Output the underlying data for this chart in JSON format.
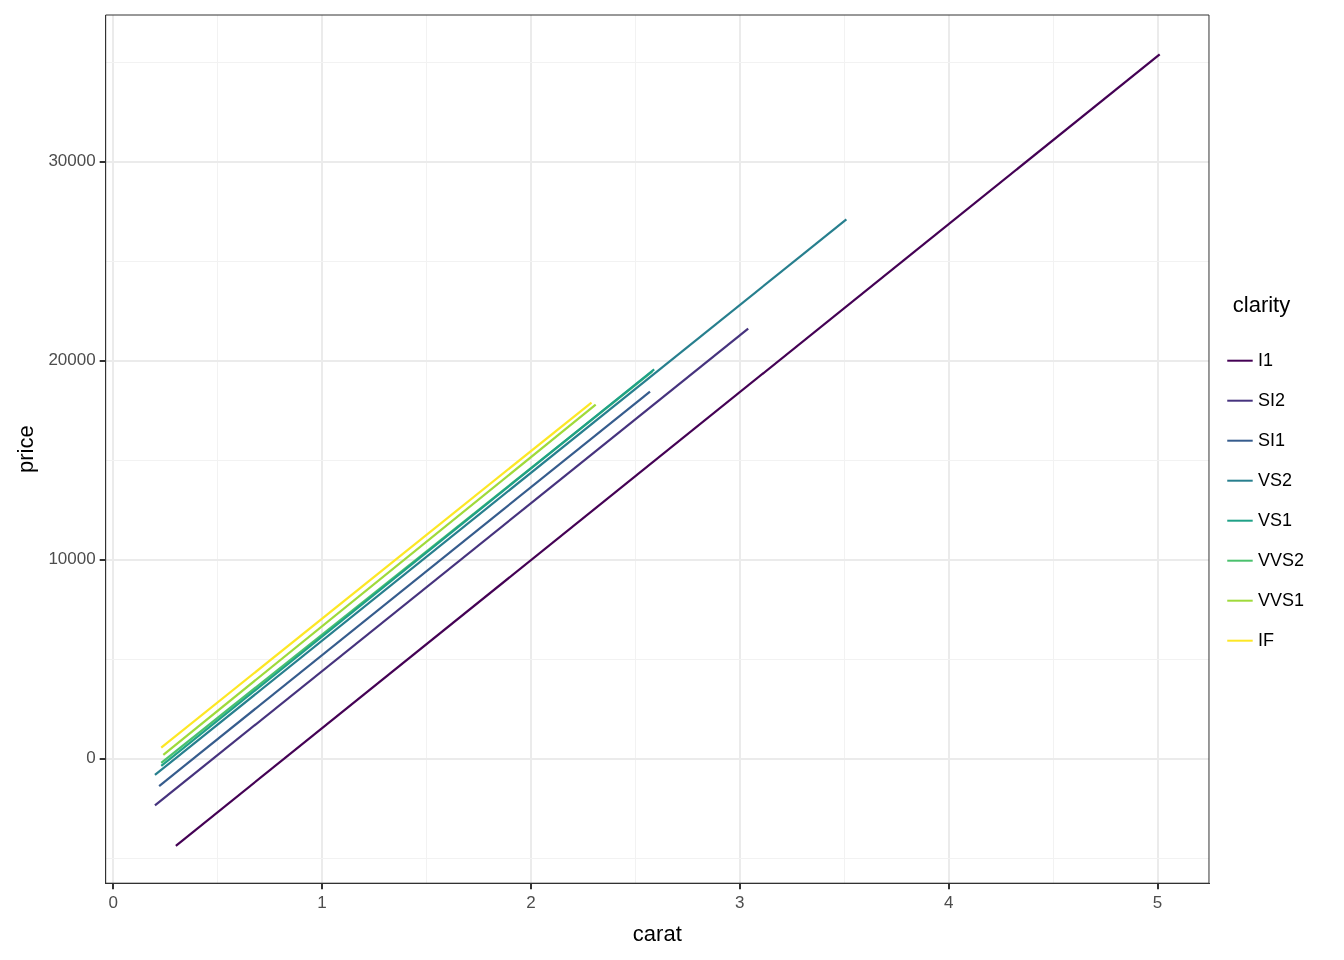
{
  "chart_data": {
    "type": "line",
    "xlabel": "carat",
    "ylabel": "price",
    "legend_title": "clarity",
    "xlim": [
      -0.036,
      5.246
    ],
    "ylim": [
      -6250,
      37370
    ],
    "xticks": [
      0,
      {
        "value": 0.5,
        "label": null
      },
      1,
      {
        "value": 1.5,
        "label": null
      },
      2,
      {
        "value": 2.5,
        "label": null
      },
      3,
      {
        "value": 3.5,
        "label": null
      },
      4,
      {
        "value": 4.5,
        "label": null
      },
      5
    ],
    "yticks": [
      {
        "value": -5000,
        "label": null
      },
      0,
      {
        "value": 5000,
        "label": null
      },
      10000,
      {
        "value": 15000,
        "label": null
      },
      20000,
      {
        "value": 25000,
        "label": null
      },
      30000,
      {
        "value": 35000,
        "label": null
      }
    ],
    "grid": true,
    "legend": "right",
    "marker": "none",
    "line_style": "solid",
    "series": [
      {
        "name": "I1",
        "color": "#440154",
        "x": [
          0.3,
          5.01
        ],
        "values": [
          -4370,
          35390
        ]
      },
      {
        "name": "SI2",
        "color": "#46337e",
        "x": [
          0.2,
          3.04
        ],
        "values": [
          -2340,
          21610
        ]
      },
      {
        "name": "SI1",
        "color": "#365c8d",
        "x": [
          0.22,
          2.57
        ],
        "values": [
          -1370,
          18450
        ]
      },
      {
        "name": "VS2",
        "color": "#277f8e",
        "x": [
          0.2,
          3.51
        ],
        "values": [
          -810,
          27100
        ]
      },
      {
        "name": "VS1",
        "color": "#1fa187",
        "x": [
          0.23,
          2.59
        ],
        "values": [
          -360,
          19570
        ]
      },
      {
        "name": "VVS2",
        "color": "#4ac16d",
        "x": [
          0.23,
          2.58
        ],
        "values": [
          -200,
          19450
        ]
      },
      {
        "name": "VVS1",
        "color": "#9fda3a",
        "x": [
          0.24,
          2.31
        ],
        "values": [
          200,
          17790
        ]
      },
      {
        "name": "IF",
        "color": "#fde725",
        "x": [
          0.23,
          2.29
        ],
        "values": [
          560,
          17900
        ]
      }
    ]
  }
}
